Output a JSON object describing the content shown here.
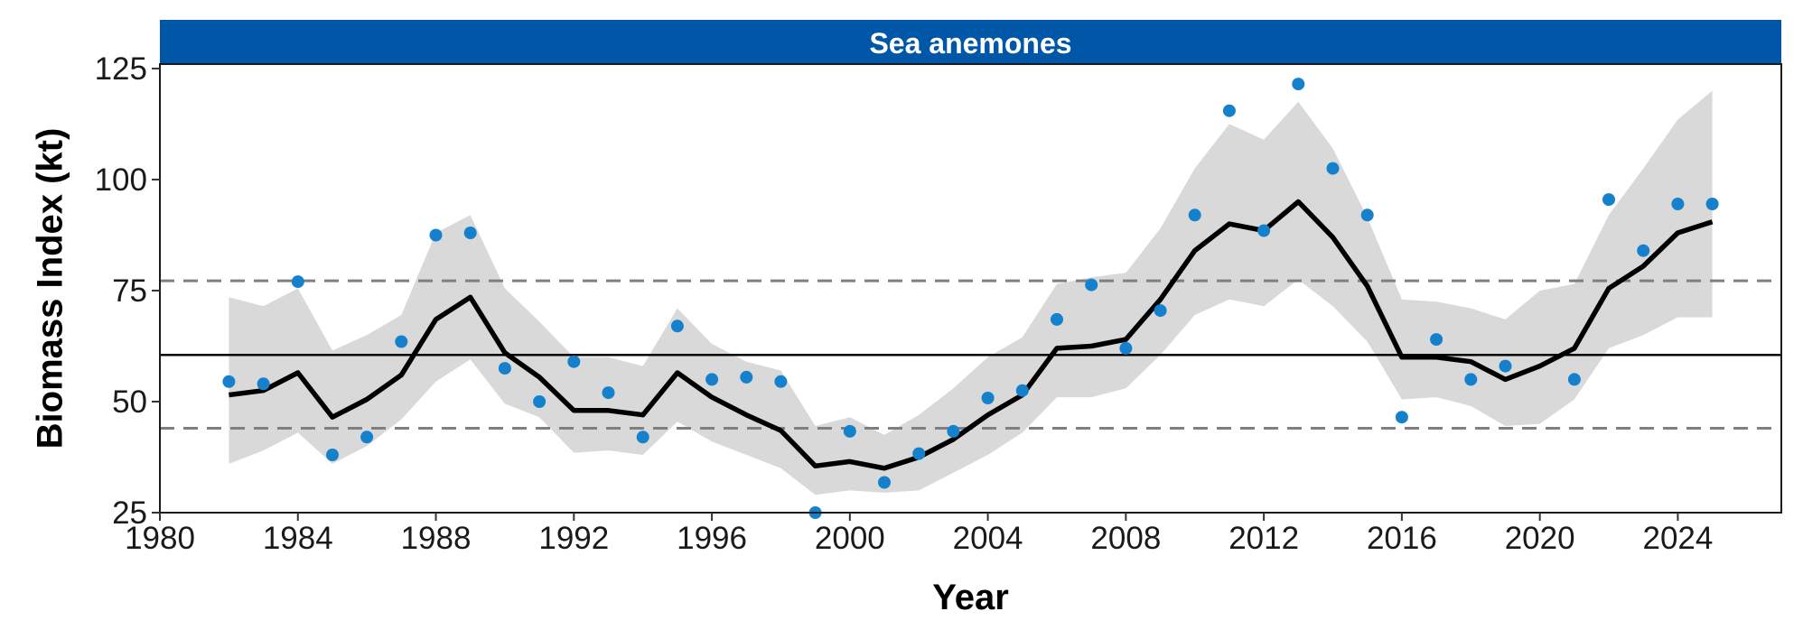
{
  "colors": {
    "strip": "#0057A8",
    "points": "#1581CC",
    "band": "#D9D9D9",
    "trend": "#000000",
    "mean_line": "#000000",
    "threshold_lines": "#7F7F7F"
  },
  "chart_data": {
    "type": "line",
    "title": "Sea anemones",
    "xlabel": "Year",
    "ylabel": "Biomass Index (kt)",
    "xlim": [
      1980,
      2027
    ],
    "ylim": [
      25,
      126
    ],
    "x_ticks": [
      1980,
      1984,
      1988,
      1992,
      1996,
      2000,
      2004,
      2008,
      2012,
      2016,
      2020,
      2024
    ],
    "y_ticks": [
      25,
      50,
      75,
      100,
      125
    ],
    "grid": false,
    "reference_lines": {
      "mean": 60.5,
      "upper_dashed": 77.2,
      "lower_dashed": 44.0
    },
    "years": [
      1982,
      1983,
      1984,
      1985,
      1986,
      1987,
      1988,
      1989,
      1990,
      1991,
      1992,
      1993,
      1994,
      1995,
      1996,
      1997,
      1998,
      1999,
      2000,
      2001,
      2002,
      2003,
      2004,
      2005,
      2006,
      2007,
      2008,
      2009,
      2010,
      2011,
      2012,
      2013,
      2014,
      2015,
      2016,
      2017,
      2018,
      2019,
      2020,
      2021,
      2022,
      2023,
      2024,
      2025
    ],
    "series": [
      {
        "type": "scatter",
        "values": [
          54.5,
          54,
          77,
          38,
          42,
          63.5,
          87.5,
          88,
          57.5,
          50,
          59,
          52,
          42,
          67,
          55,
          55.5,
          54.5,
          25,
          43.3,
          31.8,
          38.3,
          43.3,
          50.8,
          52.5,
          68.5,
          76.3,
          62,
          70.5,
          92,
          115.5,
          88.5,
          121.5,
          102.5,
          92,
          46.5,
          64,
          55,
          58,
          null,
          55,
          95.5,
          84,
          94.5,
          94.5
        ]
      },
      {
        "type": "line",
        "values": [
          51.5,
          52.5,
          56.5,
          46.5,
          50.5,
          56,
          68.5,
          73.5,
          61,
          55.5,
          48,
          48,
          47,
          56.5,
          51,
          47,
          43.5,
          35.5,
          36.5,
          35,
          37.5,
          41.5,
          47,
          51.5,
          62,
          62.5,
          64,
          73,
          84,
          90,
          88.5,
          95,
          87,
          76,
          60,
          60,
          59,
          55,
          58,
          62,
          75.5,
          80.5,
          88,
          90.5
        ]
      },
      {
        "type": "area",
        "lower": [
          36,
          39,
          43,
          36,
          40,
          46,
          54.5,
          59.5,
          49.5,
          46.5,
          38.5,
          39,
          38,
          45.5,
          41,
          38,
          35,
          29,
          30,
          29.5,
          30,
          34,
          38,
          43,
          51,
          51,
          53,
          60.5,
          69.5,
          73,
          71.5,
          77.5,
          71.5,
          63.5,
          50.5,
          51,
          49,
          44.5,
          45,
          50.5,
          62,
          65,
          69,
          69
        ],
        "upper": [
          73.5,
          71.5,
          75.5,
          61.5,
          65,
          69.5,
          88,
          92,
          75.5,
          68,
          60,
          60,
          58,
          71,
          63,
          59,
          57,
          44.5,
          46.5,
          42.5,
          47,
          53,
          60,
          64.5,
          76.5,
          78,
          79,
          89,
          102.5,
          112.5,
          109,
          117.5,
          107,
          91.5,
          73,
          72.5,
          71,
          68.5,
          75,
          76.5,
          92,
          102.5,
          113.5,
          120
        ]
      }
    ]
  }
}
